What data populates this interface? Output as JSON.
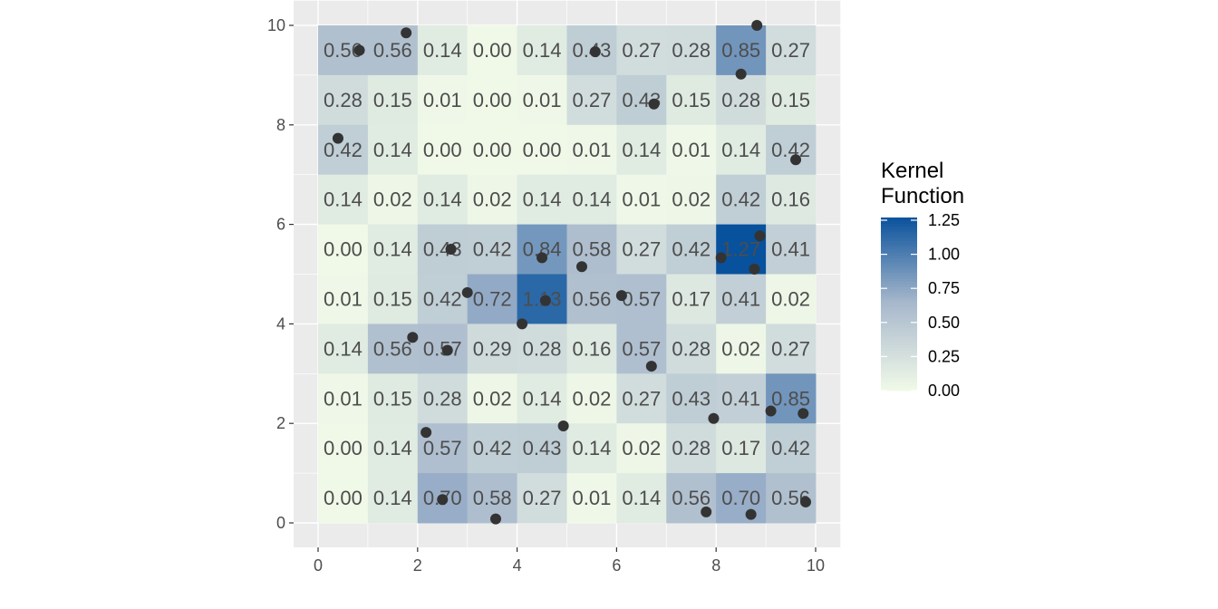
{
  "chart_data": {
    "type": "heatmap",
    "title": "",
    "xlabel": "",
    "ylabel": "",
    "xlim": [
      -0.5,
      10.5
    ],
    "ylim": [
      -0.5,
      10.5
    ],
    "x_ticks": [
      0,
      2,
      4,
      6,
      8,
      10
    ],
    "y_ticks": [
      0,
      2,
      4,
      6,
      8,
      10
    ],
    "x_tick_labels": [
      "0",
      "2",
      "4",
      "6",
      "8",
      "10"
    ],
    "y_tick_labels": [
      "0",
      "2",
      "4",
      "6",
      "8",
      "10"
    ],
    "grid": true,
    "background_color": "#ebebeb",
    "cell_size": 1,
    "rows_top_to_bottom": [
      [
        "0.56",
        "0.56",
        "0.14",
        "0.00",
        "0.14",
        "0.43",
        "0.27",
        "0.28",
        "0.85",
        "0.27"
      ],
      [
        "0.28",
        "0.15",
        "0.01",
        "0.00",
        "0.01",
        "0.27",
        "0.43",
        "0.15",
        "0.28",
        "0.15"
      ],
      [
        "0.42",
        "0.14",
        "0.00",
        "0.00",
        "0.00",
        "0.01",
        "0.14",
        "0.01",
        "0.14",
        "0.42"
      ],
      [
        "0.14",
        "0.02",
        "0.14",
        "0.02",
        "0.14",
        "0.14",
        "0.01",
        "0.02",
        "0.42",
        "0.16"
      ],
      [
        "0.00",
        "0.14",
        "0.43",
        "0.42",
        "0.84",
        "0.58",
        "0.27",
        "0.42",
        "1.27",
        "0.41"
      ],
      [
        "0.01",
        "0.15",
        "0.42",
        "0.72",
        "1.13",
        "0.56",
        "0.57",
        "0.17",
        "0.41",
        "0.02"
      ],
      [
        "0.14",
        "0.56",
        "0.57",
        "0.29",
        "0.28",
        "0.16",
        "0.57",
        "0.28",
        "0.02",
        "0.27"
      ],
      [
        "0.01",
        "0.15",
        "0.28",
        "0.02",
        "0.14",
        "0.02",
        "0.27",
        "0.43",
        "0.41",
        "0.85"
      ],
      [
        "0.00",
        "0.14",
        "0.57",
        "0.42",
        "0.43",
        "0.14",
        "0.02",
        "0.28",
        "0.17",
        "0.42"
      ],
      [
        "0.00",
        "0.14",
        "0.70",
        "0.58",
        "0.27",
        "0.01",
        "0.14",
        "0.56",
        "0.70",
        "0.56"
      ]
    ],
    "points": [
      [
        0.83,
        9.5
      ],
      [
        1.77,
        9.85
      ],
      [
        5.57,
        9.47
      ],
      [
        8.82,
        10.0
      ],
      [
        8.5,
        9.02
      ],
      [
        6.75,
        8.42
      ],
      [
        0.4,
        7.73
      ],
      [
        9.6,
        7.3
      ],
      [
        2.67,
        5.5
      ],
      [
        4.5,
        5.33
      ],
      [
        5.3,
        5.15
      ],
      [
        8.88,
        5.77
      ],
      [
        8.1,
        5.33
      ],
      [
        8.77,
        5.1
      ],
      [
        3.0,
        4.63
      ],
      [
        4.57,
        4.47
      ],
      [
        6.1,
        4.57
      ],
      [
        4.1,
        4.0
      ],
      [
        1.9,
        3.73
      ],
      [
        2.6,
        3.47
      ],
      [
        6.7,
        3.15
      ],
      [
        9.1,
        2.25
      ],
      [
        9.75,
        2.2
      ],
      [
        7.95,
        2.1
      ],
      [
        4.93,
        1.95
      ],
      [
        2.17,
        1.82
      ],
      [
        2.5,
        0.47
      ],
      [
        3.57,
        0.08
      ],
      [
        7.8,
        0.22
      ],
      [
        8.7,
        0.17
      ],
      [
        9.8,
        0.42
      ]
    ],
    "point_color": "#333333",
    "legend": {
      "title": [
        "Kernel",
        "Function"
      ],
      "position": "right",
      "scale_min": 0,
      "scale_max": 1.27,
      "breaks": [
        0.0,
        0.25,
        0.5,
        0.75,
        1.0,
        1.25
      ],
      "labels": [
        "0.00",
        "0.25",
        "0.50",
        "0.75",
        "1.00",
        "1.25"
      ],
      "color_low": "#f0f9e8",
      "color_mid": "#a8b8cc",
      "color_high": "#08519c"
    }
  }
}
